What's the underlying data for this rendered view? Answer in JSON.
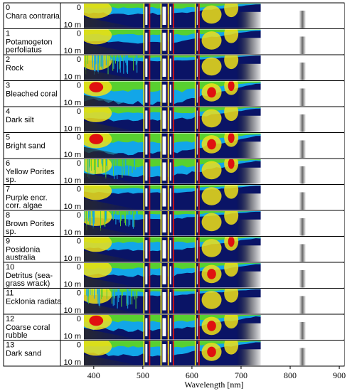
{
  "chart_data": {
    "type": "heatmap",
    "xlabel": "Wavelength [nm]",
    "xlim": [
      380,
      910
    ],
    "x_ticks": [
      "400",
      "500",
      "600",
      "700",
      "800",
      "900"
    ],
    "x_tick_values": [
      400,
      500,
      600,
      700,
      800,
      900
    ],
    "depth_labels": {
      "top": "0",
      "bottom": "10 m"
    },
    "depth_range": [
      0,
      10
    ],
    "grid": false,
    "legend": "none",
    "colors": {
      "background": "#0a1466",
      "cyan": "#12a6e8",
      "green": "#58d030",
      "yellow": "#f0e018",
      "red": "#e01010",
      "masked": "#ffffff",
      "shadow": "#404040"
    },
    "rows": [
      {
        "index": "0",
        "name_lines": [
          "Chara contraria"
        ]
      },
      {
        "index": "1",
        "name_lines": [
          "Potamogeton",
          "perfoliatus"
        ]
      },
      {
        "index": "2",
        "name_lines": [
          "Rock"
        ]
      },
      {
        "index": "3",
        "name_lines": [
          "Bleached coral"
        ]
      },
      {
        "index": "4",
        "name_lines": [
          "Dark silt"
        ]
      },
      {
        "index": "5",
        "name_lines": [
          "Bright sand"
        ]
      },
      {
        "index": "6",
        "name_lines": [
          "Yellow Porites",
          "sp."
        ]
      },
      {
        "index": "7",
        "name_lines": [
          "Purple encr.",
          "corr. algae"
        ]
      },
      {
        "index": "8",
        "name_lines": [
          "Brown Porites",
          "sp."
        ]
      },
      {
        "index": "9",
        "name_lines": [
          "Posidonia",
          "australia"
        ]
      },
      {
        "index": "10",
        "name_lines": [
          "Detritus (sea-",
          "grass wrack)"
        ]
      },
      {
        "index": "11",
        "name_lines": [
          "Ecklonia radiata"
        ]
      },
      {
        "index": "12",
        "name_lines": [
          "Coarse coral",
          "rubble"
        ]
      },
      {
        "index": "13",
        "name_lines": [
          "Dark sand"
        ]
      }
    ]
  }
}
